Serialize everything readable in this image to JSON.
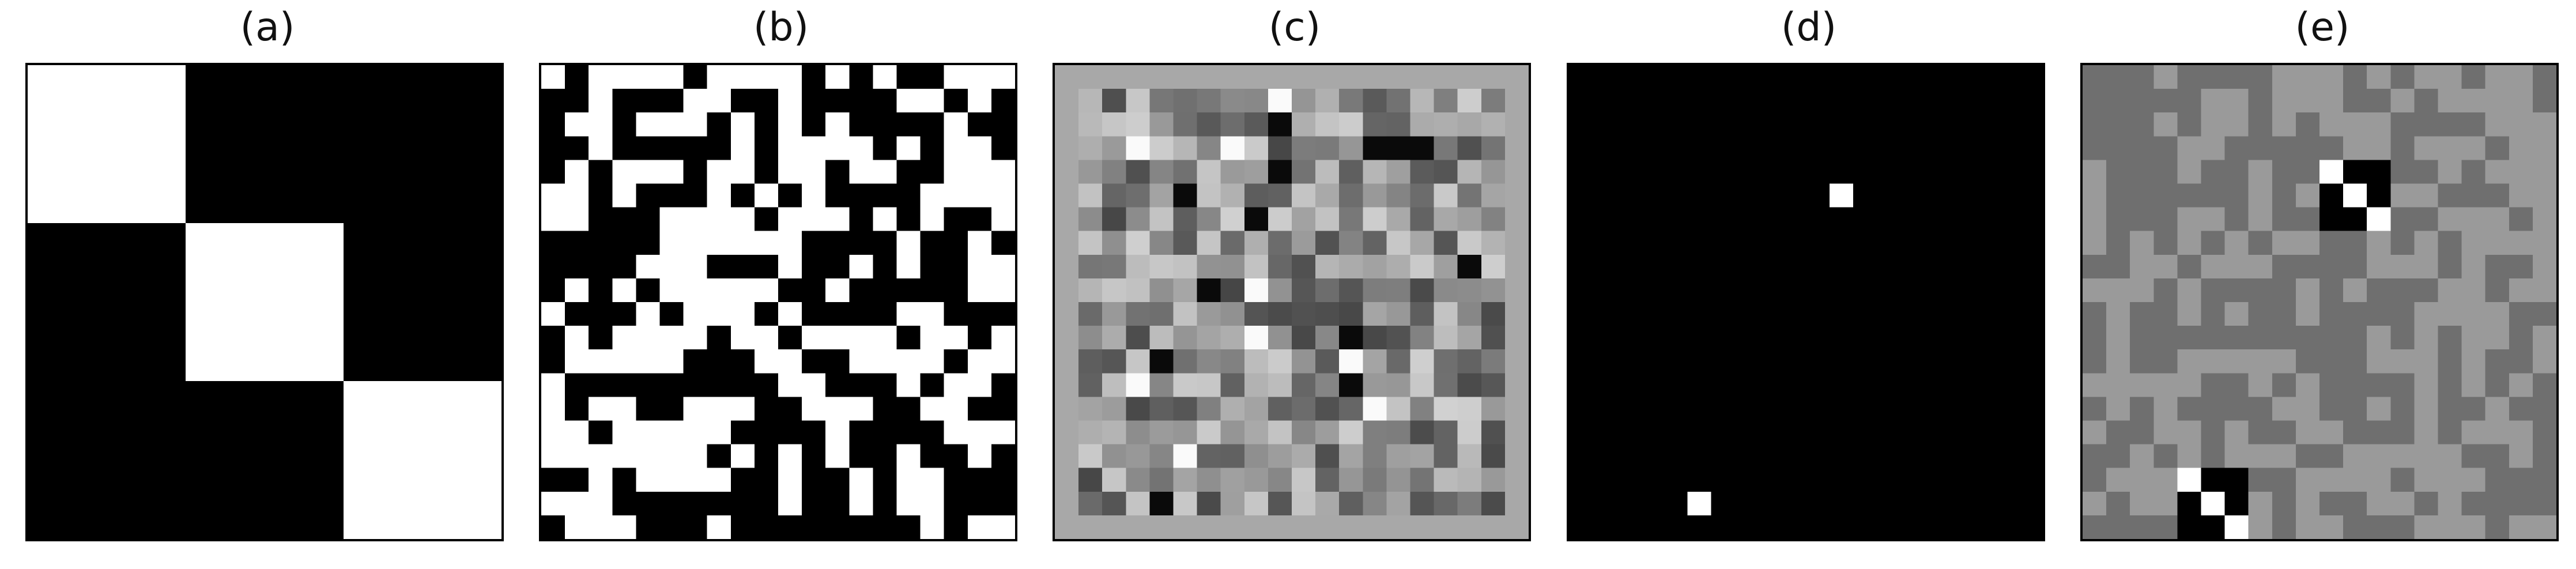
{
  "figure": {
    "panels": [
      {
        "id": "a",
        "label": "(a)"
      },
      {
        "id": "b",
        "label": "(b)"
      },
      {
        "id": "c",
        "label": "(c)"
      },
      {
        "id": "d",
        "label": "(d)"
      },
      {
        "id": "e",
        "label": "(e)"
      }
    ],
    "colors": {
      "white": "#ffffff",
      "black": "#000000",
      "background_gray": "#a8a8a8"
    }
  }
}
